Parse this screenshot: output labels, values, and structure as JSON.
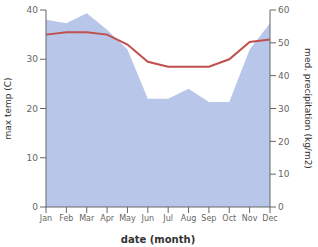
{
  "chart_data": {
    "type": "line",
    "categories": [
      "Jan",
      "Feb",
      "Mar",
      "Apr",
      "May",
      "Jun",
      "Jul",
      "Aug",
      "Sep",
      "Oct",
      "Nov",
      "Dec"
    ],
    "series": [
      {
        "type": "area",
        "color": "#b0c0e8",
        "axis": "y2",
        "values": [
          57,
          56,
          59,
          54,
          48,
          33,
          33,
          36,
          32,
          32,
          48,
          56
        ]
      },
      {
        "type": "line",
        "color": "#c0504d",
        "values": [
          35,
          35.5,
          35.5,
          35,
          33,
          29.5,
          28.5,
          28.5,
          28.5,
          30,
          33.5,
          34
        ]
      }
    ],
    "xlabel": "date (month)",
    "ylabel": "max temp (C)",
    "y2label": "med. precipitation (kg/m2)",
    "ylim": [
      0,
      40
    ],
    "yticks": [
      0,
      10,
      20,
      30,
      40
    ],
    "y2lim": [
      0,
      60
    ],
    "y2ticks": [
      0,
      10,
      20,
      30,
      40,
      50,
      60
    ],
    "grid": false
  }
}
